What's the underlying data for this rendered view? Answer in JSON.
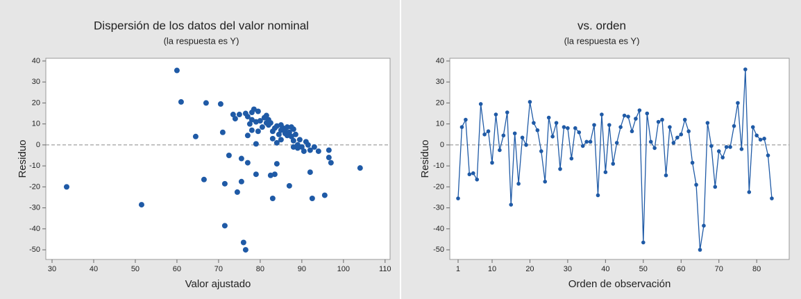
{
  "chart_data": [
    {
      "type": "scatter",
      "title": "Dispersión de los datos del valor nominal",
      "subtitle": "(la respuesta es Y)",
      "xlabel": "Valor ajustado",
      "ylabel": "Residuo",
      "color": "#1f5aa6",
      "reference_line": 0,
      "xlim": [
        28.5,
        111.2
      ],
      "xticks": [
        30,
        40,
        50,
        60,
        70,
        80,
        90,
        100,
        110
      ],
      "ylim": [
        -54.6,
        41.3
      ],
      "yticks": [
        -50,
        -40,
        -30,
        -20,
        -10,
        0,
        10,
        20,
        30,
        40
      ],
      "x": [
        33.5,
        51.5,
        60,
        61,
        64.5,
        66.5,
        67,
        70.5,
        71,
        71.5,
        71.5,
        72.5,
        73.5,
        74,
        74.5,
        75,
        75.5,
        75.5,
        76,
        76.5,
        76.5,
        77,
        77,
        77,
        77.5,
        78,
        78,
        78,
        78.5,
        79,
        79,
        79,
        79.5,
        79.5,
        80,
        80.5,
        81,
        81.5,
        81.5,
        82,
        82,
        82.5,
        82.5,
        83,
        83,
        83,
        83.5,
        83.5,
        84,
        84,
        84,
        84.5,
        85,
        85,
        85,
        85.5,
        86,
        86,
        86.5,
        86.5,
        87,
        87,
        87.5,
        87.5,
        88,
        88,
        88,
        88.5,
        89,
        89,
        89.5,
        90,
        90.5,
        91,
        91.5,
        92,
        92,
        92.5,
        93,
        94,
        95.5,
        96.5,
        96.5,
        97,
        104
      ],
      "values": [
        -20,
        -28.5,
        35.5,
        20.5,
        4,
        -16.5,
        20,
        19.5,
        6,
        -18.5,
        -38.5,
        -5,
        14.5,
        12.5,
        -22.5,
        14.5,
        -17.5,
        -6.5,
        -46.5,
        -50,
        15,
        13.5,
        -8.5,
        4.5,
        10,
        15.5,
        12,
        7,
        17,
        -14,
        0.5,
        11,
        16,
        6.5,
        11.5,
        8.5,
        13,
        10.5,
        14,
        12,
        9.5,
        10.5,
        -14.5,
        3,
        6.5,
        -25.5,
        8,
        -14,
        -9,
        9,
        1,
        5,
        7,
        9.5,
        2.5,
        8,
        5.5,
        7.5,
        4.5,
        8.5,
        6,
        -19.5,
        8.5,
        4,
        7.5,
        2,
        -1,
        5,
        0,
        -1.5,
        2.5,
        -1,
        -3,
        1.5,
        0,
        -13,
        -2.5,
        -25.5,
        -1,
        -3,
        -24,
        -2.5,
        -6,
        -8.5,
        -11
      ]
    },
    {
      "type": "line",
      "title": "vs. orden",
      "subtitle": "(la respuesta es Y)",
      "xlabel": "Orden de observación",
      "ylabel": "Residuo",
      "color": "#1f5aa6",
      "reference_line": 0,
      "xlim": [
        -1.2,
        88.6
      ],
      "xticks": [
        1,
        10,
        20,
        30,
        40,
        50,
        60,
        70,
        80
      ],
      "ylim": [
        -54.6,
        41.3
      ],
      "yticks": [
        -50,
        -40,
        -30,
        -20,
        -10,
        0,
        10,
        20,
        30,
        40
      ],
      "x": [
        1,
        2,
        3,
        4,
        5,
        6,
        7,
        8,
        9,
        10,
        11,
        12,
        13,
        14,
        15,
        16,
        17,
        18,
        19,
        20,
        21,
        22,
        23,
        24,
        25,
        26,
        27,
        28,
        29,
        30,
        31,
        32,
        33,
        34,
        35,
        36,
        37,
        38,
        39,
        40,
        41,
        42,
        43,
        44,
        45,
        46,
        47,
        48,
        49,
        50,
        51,
        52,
        53,
        54,
        55,
        56,
        57,
        58,
        59,
        60,
        61,
        62,
        63,
        64,
        65,
        66,
        67,
        68,
        69,
        70,
        71,
        72,
        73,
        74,
        75,
        76,
        77,
        78,
        79,
        80,
        81,
        82,
        83,
        84
      ],
      "values": [
        -25.5,
        8.5,
        12,
        -14,
        -13.5,
        -16.5,
        19.5,
        5,
        6.5,
        -8.5,
        14.5,
        -2.5,
        4.5,
        15.5,
        -28.5,
        5.5,
        -18.5,
        3.5,
        0,
        20.5,
        10.5,
        7,
        -3,
        -17.5,
        13,
        4,
        10.5,
        -11.5,
        8.5,
        8,
        -6.5,
        8,
        6,
        -0.5,
        1.5,
        1.5,
        9.5,
        -24,
        14.5,
        -13,
        9.5,
        -9,
        1,
        8.5,
        14,
        13.5,
        6.5,
        12.5,
        16.5,
        -46.5,
        15,
        1.5,
        -1.5,
        11,
        12,
        -14.5,
        8.5,
        1,
        3.5,
        5,
        12,
        6.5,
        -8.5,
        -19,
        -50,
        -38.5,
        10.5,
        -0.5,
        -20,
        -3,
        -6,
        -1,
        -1,
        9,
        20,
        -2,
        36,
        -22.5,
        8.5,
        4.5,
        2.5,
        3,
        -5,
        -25.5
      ]
    }
  ]
}
